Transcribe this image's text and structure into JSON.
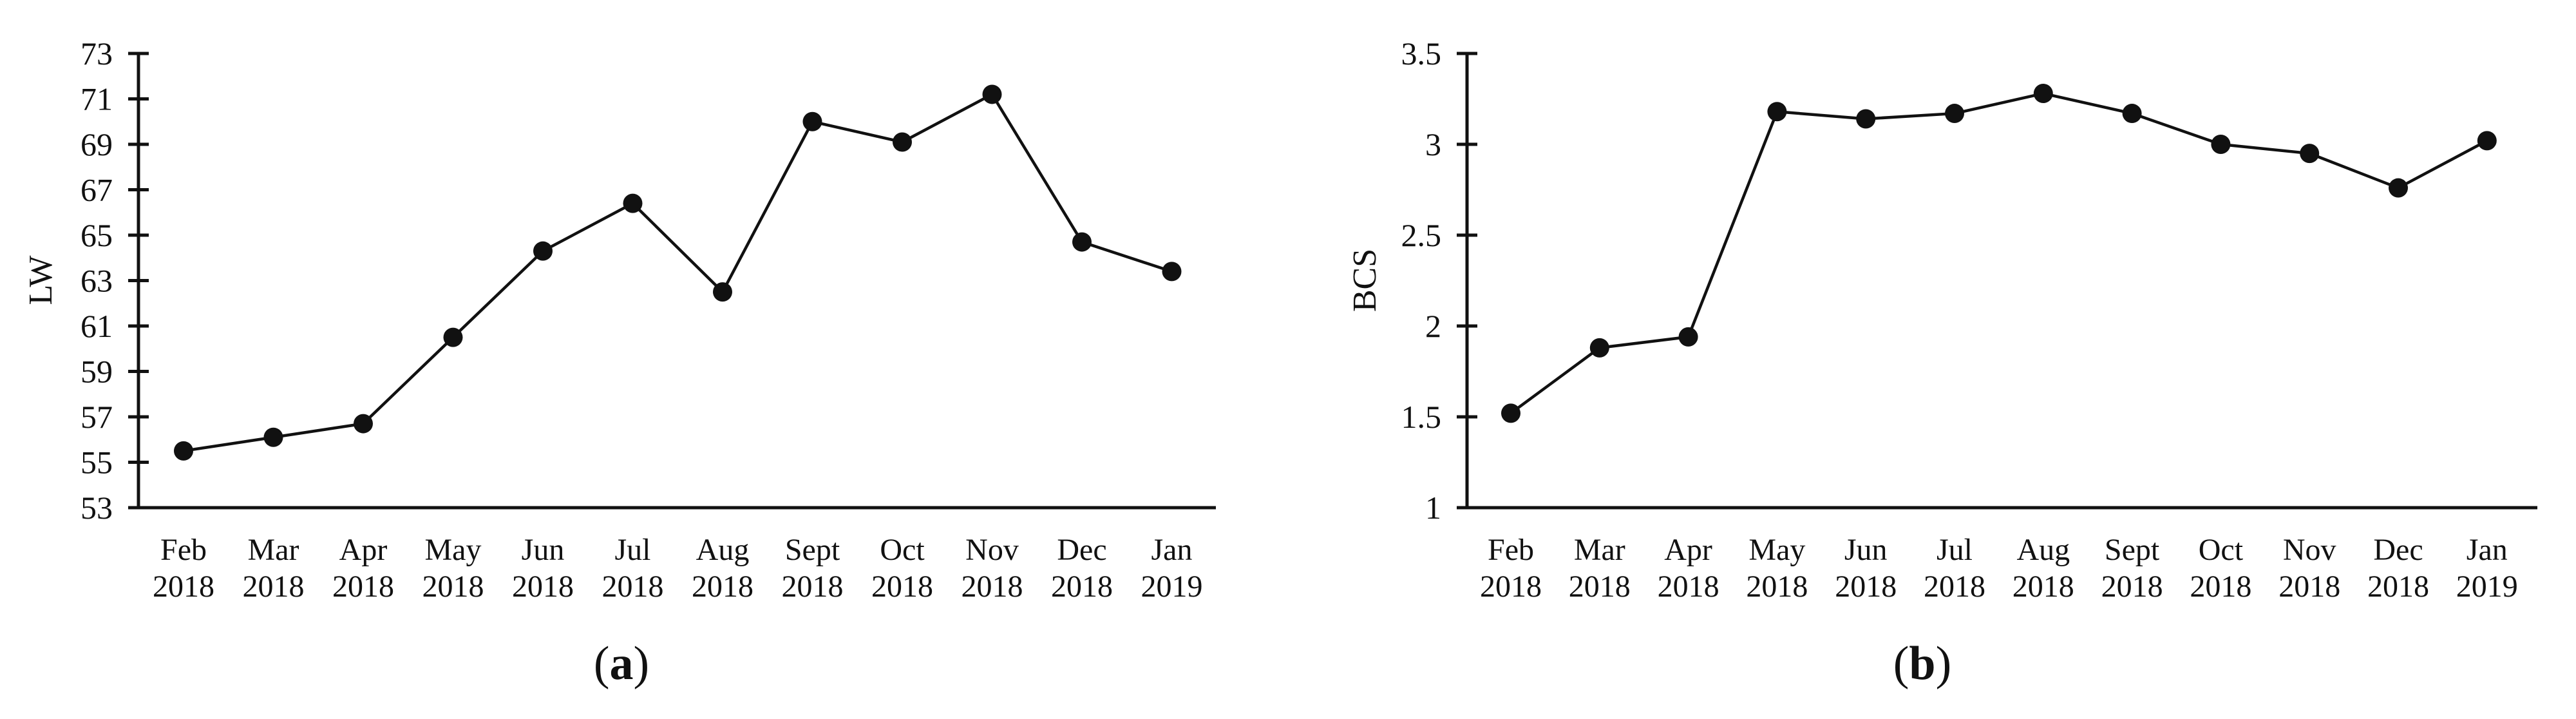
{
  "figure": {
    "background": "#ffffff",
    "ink": "#111111"
  },
  "panels": [
    {
      "open": "(",
      "letter": "a",
      "close": ")"
    },
    {
      "open": "(",
      "letter": "b",
      "close": ")"
    }
  ],
  "chart_data": [
    {
      "type": "line",
      "panel": "a",
      "title": "",
      "xlabel": "",
      "ylabel": "LW",
      "categories": [
        "Feb 2018",
        "Mar 2018",
        "Apr 2018",
        "May 2018",
        "Jun 2018",
        "Jul 2018",
        "Aug 2018",
        "Sept 2018",
        "Oct 2018",
        "Nov 2018",
        "Dec 2018",
        "Jan 2019"
      ],
      "x_tick_line1": [
        "Feb",
        "Mar",
        "Apr",
        "May",
        "Jun",
        "Jul",
        "Aug",
        "Sept",
        "Oct",
        "Nov",
        "Dec",
        "Jan"
      ],
      "x_tick_line2": [
        "2018",
        "2018",
        "2018",
        "2018",
        "2018",
        "2018",
        "2018",
        "2018",
        "2018",
        "2018",
        "2018",
        "2019"
      ],
      "series": [
        {
          "name": "LW",
          "values": [
            55.5,
            56.1,
            56.7,
            60.5,
            64.3,
            66.4,
            62.5,
            70.0,
            69.1,
            71.2,
            64.7,
            63.4
          ]
        }
      ],
      "ylim": [
        53,
        73
      ],
      "ytick_values": [
        73,
        71,
        69,
        67,
        65,
        63,
        61,
        59,
        57,
        55,
        53
      ],
      "ytick_labels": [
        "73",
        "71",
        "69",
        "67",
        "65",
        "63",
        "61",
        "59",
        "57",
        "55",
        "53"
      ],
      "grid": false,
      "legend": null,
      "marker": "filled-circle",
      "line_color": "#111111"
    },
    {
      "type": "line",
      "panel": "b",
      "title": "",
      "xlabel": "",
      "ylabel": "BCS",
      "categories": [
        "Feb 2018",
        "Mar 2018",
        "Apr 2018",
        "May 2018",
        "Jun 2018",
        "Jul 2018",
        "Aug 2018",
        "Sept 2018",
        "Oct 2018",
        "Nov 2018",
        "Dec 2018",
        "Jan 2019"
      ],
      "x_tick_line1": [
        "Feb",
        "Mar",
        "Apr",
        "May",
        "Jun",
        "Jul",
        "Aug",
        "Sept",
        "Oct",
        "Nov",
        "Dec",
        "Jan"
      ],
      "x_tick_line2": [
        "2018",
        "2018",
        "2018",
        "2018",
        "2018",
        "2018",
        "2018",
        "2018",
        "2018",
        "2018",
        "2018",
        "2019"
      ],
      "series": [
        {
          "name": "BCS",
          "values": [
            1.52,
            1.88,
            1.94,
            3.18,
            3.14,
            3.17,
            3.28,
            3.17,
            3.0,
            2.95,
            2.76,
            3.02
          ]
        }
      ],
      "ylim": [
        1,
        3.5
      ],
      "ytick_values": [
        3.5,
        3,
        2.5,
        2,
        1.5,
        1
      ],
      "ytick_labels": [
        "3.5",
        "3",
        "2.5",
        "2",
        "1.5",
        "1"
      ],
      "grid": false,
      "legend": null,
      "marker": "filled-circle",
      "line_color": "#111111"
    }
  ]
}
